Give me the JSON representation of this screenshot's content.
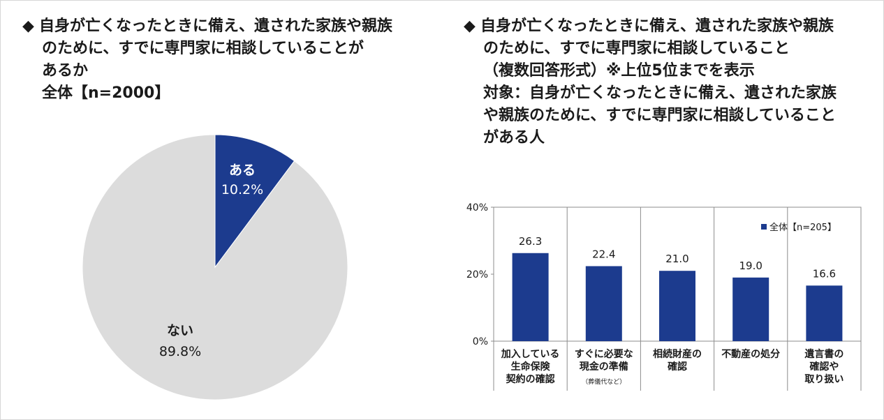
{
  "left": {
    "title_marker": "◆",
    "title_lines": [
      "自身が亡くなったときに備え、遺された家族や親族",
      "のために、すでに専門家に相談していることが",
      "あるか",
      "全体【n=2000】"
    ]
  },
  "right": {
    "title_marker": "◆",
    "title_lines": [
      "自身が亡くなったときに備え、遺された家族や親族",
      "のために、すでに専門家に相談していること",
      "（複数回答形式）※上位5位までを表示",
      "対象：自身が亡くなったときに備え、遺された家族",
      "や親族のために、すでに専門家に相談していること",
      "がある人"
    ]
  },
  "colors": {
    "bar": "#1c3b8e",
    "pie_yes": "#1c3b8e",
    "pie_no": "#dcdcdc"
  },
  "chart_data": [
    {
      "type": "pie",
      "slices": [
        {
          "label": "ある",
          "value": 10.2,
          "display": "10.2%",
          "color": "#1c3b8e"
        },
        {
          "label": "ない",
          "value": 89.8,
          "display": "89.8%",
          "color": "#dcdcdc"
        }
      ]
    },
    {
      "type": "bar",
      "categories": [
        {
          "lines": [
            "加入している",
            "生命保険",
            "契約の確認"
          ],
          "note": ""
        },
        {
          "lines": [
            "すぐに必要な",
            "現金の準備"
          ],
          "note": "（葬儀代など）"
        },
        {
          "lines": [
            "相続財産の",
            "確認"
          ],
          "note": ""
        },
        {
          "lines": [
            "不動産の処分"
          ],
          "note": ""
        },
        {
          "lines": [
            "遺言書の",
            "確認や",
            "取り扱い"
          ],
          "note": ""
        }
      ],
      "series": [
        {
          "name": "全体【n=205】",
          "values": [
            26.3,
            22.4,
            21.0,
            19.0,
            16.6
          ]
        }
      ],
      "value_labels": [
        "26.3",
        "22.4",
        "21.0",
        "19.0",
        "16.6"
      ],
      "ylim": [
        0,
        40
      ],
      "yticks": [
        "0%",
        "20%",
        "40%"
      ],
      "legend_position": "top-right"
    }
  ]
}
